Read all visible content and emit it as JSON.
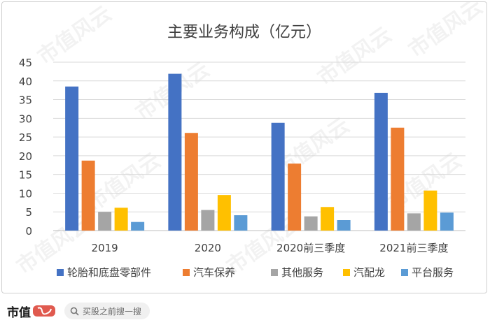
{
  "watermark": "市值风云",
  "footer": {
    "brand_text": "市值",
    "search_text": "买股之前搜一搜"
  },
  "chart_data": {
    "type": "bar",
    "title": "主要业务构成（亿元）",
    "categories": [
      "2019",
      "2020",
      "2020前三季度",
      "2021前三季度"
    ],
    "series": [
      {
        "name": "轮胎和底盘零部件",
        "color": "#4472C4",
        "values": [
          38.5,
          41.9,
          28.8,
          36.8
        ]
      },
      {
        "name": "汽车保养",
        "color": "#ED7D31",
        "values": [
          18.7,
          26.1,
          17.9,
          27.5
        ]
      },
      {
        "name": "其他服务",
        "color": "#A5A5A5",
        "values": [
          5.0,
          5.5,
          3.8,
          4.6
        ]
      },
      {
        "name": "汽配龙",
        "color": "#FFC000",
        "values": [
          6.1,
          9.5,
          6.3,
          10.7
        ]
      },
      {
        "name": "平台服务",
        "color": "#5B9BD5",
        "values": [
          2.3,
          4.1,
          2.8,
          4.8
        ]
      }
    ],
    "ylim": [
      0,
      45
    ],
    "yticks": [
      0,
      5,
      10,
      15,
      20,
      25,
      30,
      35,
      40,
      45
    ],
    "grid": true,
    "legend_position": "bottom"
  }
}
